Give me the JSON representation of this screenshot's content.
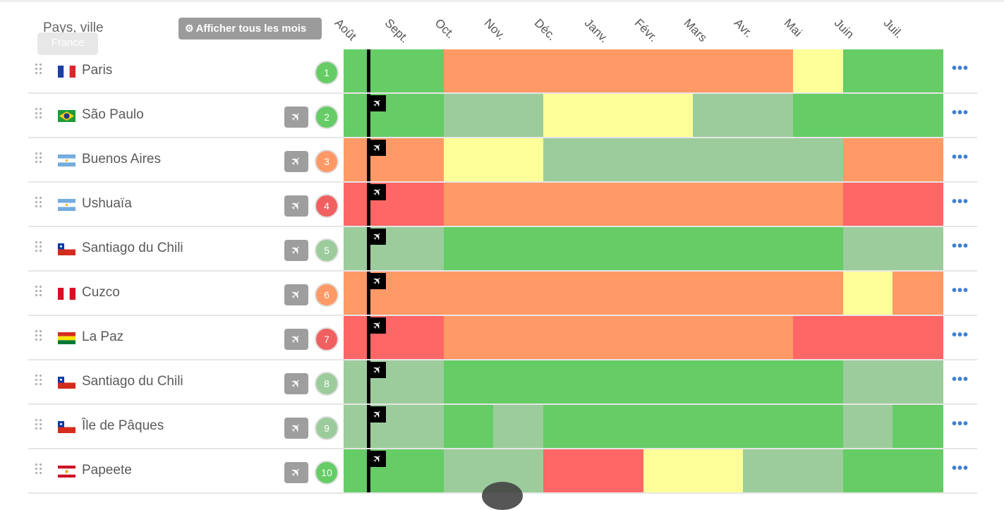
{
  "header": {
    "title": "Pays, ville",
    "tooltip": "France",
    "show_months_label": "Afficher tous les mois",
    "gear_icon": "gear-icon"
  },
  "months": [
    "Août",
    "Sept.",
    "Oct.",
    "Nov.",
    "Déc.",
    "Janv.",
    "Févr.",
    "Mars",
    "Avr.",
    "Mai",
    "Juin",
    "Juil."
  ],
  "colors": {
    "G": "#66cc66",
    "L": "#9ccc9c",
    "Y": "#ffff99",
    "O": "#ff9966",
    "R": "#ff6666",
    "badge_G": "#66cc66",
    "badge_L": "#9ccc9c",
    "badge_O": "#ff9966",
    "badge_R": "#f06060",
    "link": "#3f7fd0"
  },
  "rows": [
    {
      "number": "1",
      "city": "Paris",
      "flag": "fr",
      "badge_color": "#66cc66",
      "has_plane": false,
      "months": [
        "G",
        "G",
        "O",
        "O",
        "O",
        "O",
        "O",
        "O",
        "O",
        "Y",
        "G",
        "G"
      ]
    },
    {
      "number": "2",
      "city": "São Paulo",
      "flag": "br",
      "badge_color": "#66cc66",
      "has_plane": true,
      "months": [
        "G",
        "G",
        "L",
        "L",
        "Y",
        "Y",
        "Y",
        "L",
        "L",
        "G",
        "G",
        "G"
      ]
    },
    {
      "number": "3",
      "city": "Buenos Aires",
      "flag": "ar",
      "badge_color": "#ff9966",
      "has_plane": true,
      "months": [
        "O",
        "O",
        "Y",
        "Y",
        "L",
        "L",
        "L",
        "L",
        "L",
        "L",
        "O",
        "O"
      ]
    },
    {
      "number": "4",
      "city": "Ushuaïa",
      "flag": "ar",
      "badge_color": "#f06060",
      "has_plane": true,
      "months": [
        "R",
        "R",
        "O",
        "O",
        "O",
        "O",
        "O",
        "O",
        "O",
        "O",
        "R",
        "R"
      ]
    },
    {
      "number": "5",
      "city": "Santiago du Chili",
      "flag": "cl",
      "badge_color": "#9ccc9c",
      "has_plane": true,
      "months": [
        "L",
        "L",
        "G",
        "G",
        "G",
        "G",
        "G",
        "G",
        "G",
        "G",
        "L",
        "L"
      ]
    },
    {
      "number": "6",
      "city": "Cuzco",
      "flag": "pe",
      "badge_color": "#ff9966",
      "has_plane": true,
      "months": [
        "O",
        "O",
        "O",
        "O",
        "O",
        "O",
        "O",
        "O",
        "O",
        "O",
        "Y",
        "O"
      ]
    },
    {
      "number": "7",
      "city": "La Paz",
      "flag": "bo",
      "badge_color": "#f06060",
      "has_plane": true,
      "months": [
        "R",
        "R",
        "O",
        "O",
        "O",
        "O",
        "O",
        "O",
        "O",
        "R",
        "R",
        "R"
      ]
    },
    {
      "number": "8",
      "city": "Santiago du Chili",
      "flag": "cl",
      "badge_color": "#9ccc9c",
      "has_plane": true,
      "months": [
        "L",
        "L",
        "G",
        "G",
        "G",
        "G",
        "G",
        "G",
        "G",
        "G",
        "L",
        "L"
      ]
    },
    {
      "number": "9",
      "city": "Île de Pâques",
      "flag": "cl",
      "badge_color": "#9ccc9c",
      "has_plane": true,
      "months": [
        "L",
        "L",
        "G",
        "L",
        "G",
        "G",
        "G",
        "G",
        "G",
        "G",
        "L",
        "G"
      ]
    },
    {
      "number": "10",
      "city": "Papeete",
      "flag": "pf",
      "badge_color": "#66cc66",
      "has_plane": true,
      "months": [
        "G",
        "G",
        "L",
        "L",
        "R",
        "R",
        "Y",
        "Y",
        "L",
        "L",
        "G",
        "G"
      ]
    }
  ],
  "icons": {
    "plane": "airplane-icon",
    "more": "more-options-icon",
    "handle": "drag-handle-icon"
  },
  "more_label": "•••",
  "plane_glyph": "✈"
}
